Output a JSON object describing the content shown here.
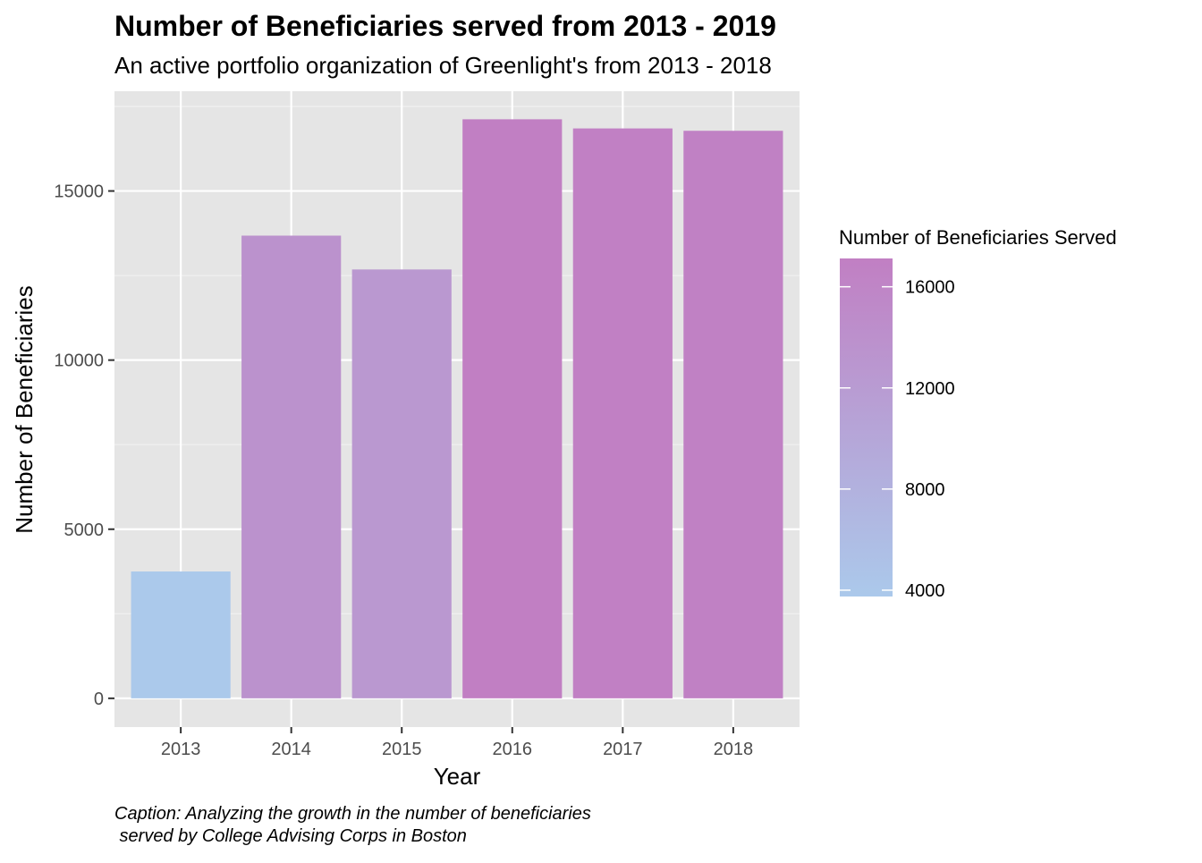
{
  "chart_data": {
    "type": "bar",
    "title": "Number of Beneficiaries served from 2013 - 2019",
    "subtitle": "An active portfolio organization of Greenlight's from 2013 - 2018",
    "xlabel": "Year",
    "ylabel": "Number of Beneficiaries",
    "categories": [
      "2013",
      "2014",
      "2015",
      "2016",
      "2017",
      "2018"
    ],
    "values": [
      3750,
      13680,
      12680,
      17120,
      16850,
      16780
    ],
    "ylim": [
      -850,
      17950
    ],
    "y_ticks": [
      0,
      5000,
      10000,
      15000
    ],
    "y_tick_labels": [
      "0",
      "5000",
      "10000",
      "15000"
    ],
    "grid": true,
    "legend": {
      "title": "Number of Beneficiaries Served",
      "placement": "right",
      "type": "colorbar",
      "range": [
        3750,
        17120
      ],
      "ticks": [
        4000,
        8000,
        12000,
        16000
      ],
      "tick_labels": [
        "4000",
        "8000",
        "12000",
        "16000"
      ],
      "low_color": "#ABC9EB",
      "high_color": "#C17FC3"
    },
    "caption_lines": [
      "Caption: Analyzing the growth in the number of beneficiaries",
      " served by College Advising Corps in Boston"
    ]
  },
  "colors": {
    "panel_background": "#E5E5E5",
    "grid_major": "#FFFFFF",
    "grid_minor": "#F2F2F2",
    "axis_text": "#4D4D4D",
    "tick": "#333333",
    "text": "#000000"
  }
}
